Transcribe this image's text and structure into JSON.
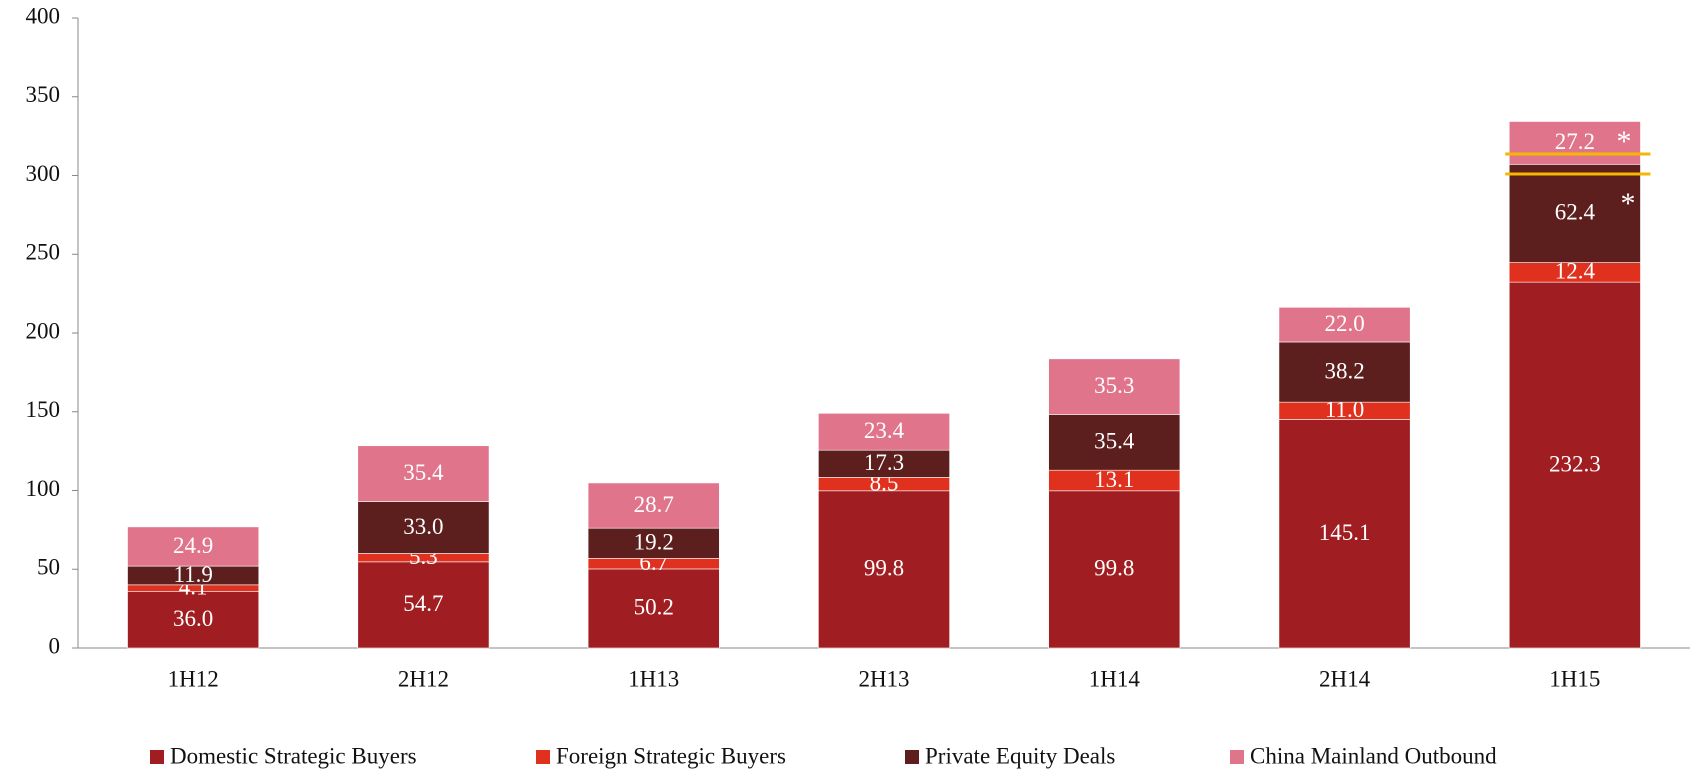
{
  "chart_data": {
    "type": "stacked_bar",
    "categories": [
      "1H12",
      "2H12",
      "1H13",
      "2H13",
      "1H14",
      "2H14",
      "1H15"
    ],
    "series": [
      {
        "name": "Domestic Strategic Buyers",
        "color": "#a01e22",
        "values": [
          36.0,
          54.7,
          50.2,
          99.8,
          99.8,
          145.1,
          232.3
        ],
        "value_labels": [
          "36.0",
          "54.7",
          "50.2",
          "99.8",
          "99.8",
          "145.1",
          "232.3"
        ]
      },
      {
        "name": "Foreign Strategic Buyers",
        "color": "#e0301e",
        "values": [
          4.1,
          5.3,
          6.7,
          8.5,
          13.1,
          11.0,
          12.4
        ],
        "value_labels": [
          "4.1",
          "5.3",
          "6.7",
          "8.5",
          "13.1",
          "11.0",
          "12.4"
        ]
      },
      {
        "name": "Private Equity Deals",
        "color": "#5c1f1e",
        "values": [
          11.9,
          33.0,
          19.2,
          17.3,
          35.4,
          38.2,
          62.4
        ],
        "value_labels": [
          "11.9",
          "33.0",
          "19.2",
          "17.3",
          "35.4",
          "38.2",
          "62.4"
        ]
      },
      {
        "name": "China Mainland Outbound",
        "color": "#e0748a",
        "values": [
          24.9,
          35.4,
          28.7,
          23.4,
          35.3,
          22.0,
          27.2
        ],
        "value_labels": [
          "24.9",
          "35.4",
          "28.7",
          "23.4",
          "35.3",
          "22.0",
          "27.2"
        ]
      }
    ],
    "annotations": [
      "*",
      "*"
    ],
    "ylim": [
      0,
      400
    ],
    "yticks": [
      0,
      50,
      100,
      150,
      200,
      250,
      300,
      350,
      400
    ],
    "grid": false
  }
}
